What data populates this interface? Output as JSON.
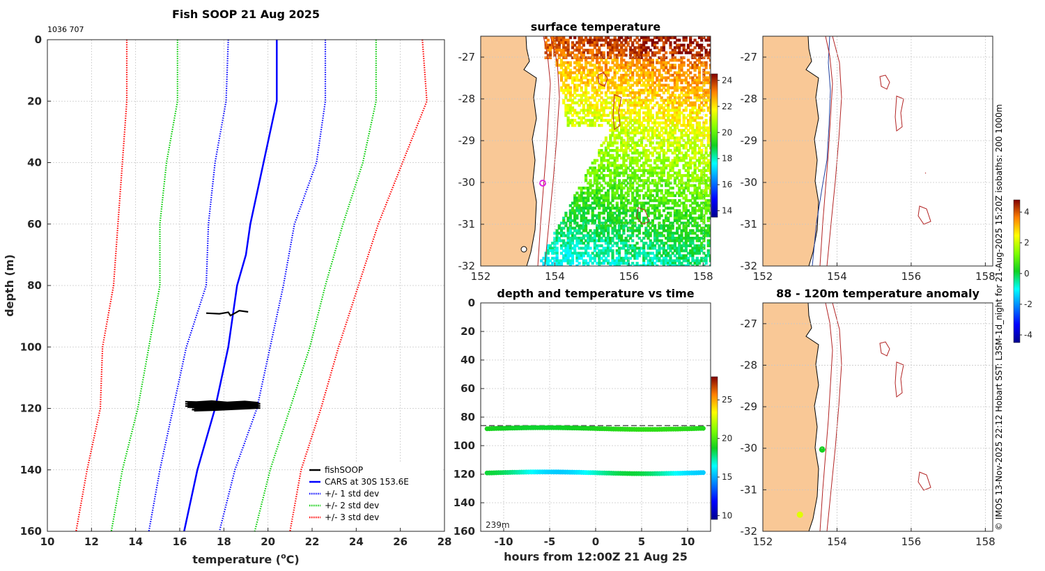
{
  "chart_data": [
    {
      "type": "line",
      "title": "Fish SOOP 21 Aug 2025",
      "id_text": "1036 707",
      "xlabel": "temperature (",
      "xlabel_unit": "o",
      "xlabel_end": "C)",
      "ylabel": "depth (m)",
      "xlim": [
        10,
        28
      ],
      "ylim": [
        0,
        160
      ],
      "xticks": [
        "10",
        "12",
        "14",
        "16",
        "18",
        "20",
        "22",
        "24",
        "26",
        "28"
      ],
      "yticks": [
        "0",
        "20",
        "40",
        "60",
        "80",
        "100",
        "120",
        "140",
        "160"
      ],
      "legend": [
        "fishSOOP",
        "CARS at 30S 153.6E",
        "+/- 1 std dev",
        "+/- 2 std dev",
        "+/- 3 std dev"
      ],
      "series": [
        {
          "name": "CARS at 30S 153.6E",
          "color": "#0000ff",
          "style": "solid",
          "points": [
            [
              20.4,
              0
            ],
            [
              20.4,
              20
            ],
            [
              19.8,
              40
            ],
            [
              19.2,
              60
            ],
            [
              19.0,
              70
            ],
            [
              18.6,
              80
            ],
            [
              18.2,
              100
            ],
            [
              17.6,
              120
            ],
            [
              16.8,
              140
            ],
            [
              16.2,
              160
            ]
          ]
        },
        {
          "name": "+/- 1 std dev low",
          "color": "#0000ff",
          "style": "dotted",
          "points": [
            [
              18.2,
              0
            ],
            [
              18.1,
              20
            ],
            [
              17.6,
              40
            ],
            [
              17.3,
              60
            ],
            [
              17.2,
              80
            ],
            [
              16.3,
              100
            ],
            [
              15.7,
              120
            ],
            [
              15.1,
              140
            ],
            [
              14.6,
              160
            ]
          ]
        },
        {
          "name": "+/- 1 std dev high",
          "color": "#0000ff",
          "style": "dotted",
          "points": [
            [
              22.6,
              0
            ],
            [
              22.6,
              20
            ],
            [
              22.2,
              40
            ],
            [
              21.2,
              60
            ],
            [
              20.7,
              80
            ],
            [
              20.1,
              100
            ],
            [
              19.5,
              120
            ],
            [
              18.5,
              140
            ],
            [
              17.8,
              160
            ]
          ]
        },
        {
          "name": "+/- 2 std dev low",
          "color": "#00cc00",
          "style": "dotted",
          "points": [
            [
              15.9,
              0
            ],
            [
              15.9,
              20
            ],
            [
              15.4,
              40
            ],
            [
              15.1,
              60
            ],
            [
              15.1,
              80
            ],
            [
              14.6,
              100
            ],
            [
              14.1,
              120
            ],
            [
              13.4,
              140
            ],
            [
              12.9,
              160
            ]
          ]
        },
        {
          "name": "+/- 2 std dev high",
          "color": "#00cc00",
          "style": "dotted",
          "points": [
            [
              24.9,
              0
            ],
            [
              24.9,
              20
            ],
            [
              24.3,
              40
            ],
            [
              23.4,
              60
            ],
            [
              22.6,
              80
            ],
            [
              21.9,
              100
            ],
            [
              21.0,
              120
            ],
            [
              20.1,
              140
            ],
            [
              19.4,
              160
            ]
          ]
        },
        {
          "name": "+/- 3 std dev low",
          "color": "#ff0000",
          "style": "dotted",
          "points": [
            [
              13.6,
              0
            ],
            [
              13.6,
              20
            ],
            [
              13.4,
              40
            ],
            [
              13.2,
              60
            ],
            [
              13.0,
              80
            ],
            [
              12.5,
              100
            ],
            [
              12.4,
              120
            ],
            [
              11.8,
              140
            ],
            [
              11.3,
              160
            ]
          ]
        },
        {
          "name": "+/- 3 std dev high",
          "color": "#ff0000",
          "style": "dotted",
          "points": [
            [
              27.0,
              0
            ],
            [
              27.2,
              20
            ],
            [
              26.1,
              40
            ],
            [
              25.0,
              60
            ],
            [
              24.1,
              80
            ],
            [
              23.2,
              100
            ],
            [
              22.4,
              120
            ],
            [
              21.5,
              140
            ],
            [
              21.0,
              160
            ]
          ]
        }
      ],
      "fishsoop": {
        "name": "fishSOOP",
        "color": "#000000",
        "points": [
          [
            17.2,
            89
          ],
          [
            17.8,
            89.2
          ],
          [
            18.2,
            88.7
          ],
          [
            18.3,
            89.8
          ],
          [
            18.5,
            89
          ],
          [
            18.7,
            88.2
          ],
          [
            19.1,
            88.6
          ],
          [
            16.3,
            119
          ],
          [
            16.8,
            118.5
          ],
          [
            17.5,
            118.8
          ],
          [
            18.2,
            118.6
          ],
          [
            19.0,
            118.9
          ],
          [
            19.6,
            118.7
          ],
          [
            17.5,
            120
          ],
          [
            16.6,
            119.6
          ]
        ]
      }
    },
    {
      "type": "heatmap",
      "title": "surface temperature",
      "xlim": [
        152,
        158.2
      ],
      "ylim": [
        -32,
        -26.5
      ],
      "xticks": [
        "152",
        "154",
        "156",
        "158"
      ],
      "yticks": [
        "-27",
        "-28",
        "-29",
        "-30",
        "-31",
        "-32"
      ],
      "colorbar": {
        "ticks": [
          "14",
          "16",
          "18",
          "20",
          "22",
          "24"
        ],
        "range": [
          13.5,
          24.5
        ]
      }
    },
    {
      "type": "scatter",
      "title": "depth and temperature vs time",
      "xlabel": "hours from 12:00Z 21 Aug 25",
      "xlim": [
        -12.5,
        12.5
      ],
      "ylim": [
        0,
        160
      ],
      "xticks": [
        "-10",
        "-5",
        "0",
        "5",
        "10"
      ],
      "yticks": [
        "0",
        "20",
        "40",
        "60",
        "80",
        "100",
        "120",
        "140",
        "160"
      ],
      "annotation": "239m",
      "dashed_line_depth": 86,
      "series": [
        {
          "name": "upper",
          "depth": 88,
          "temp": 19
        },
        {
          "name": "lower",
          "depth": 119,
          "temp": 17
        }
      ],
      "colorbar": {
        "ticks": [
          "10",
          "15",
          "20",
          "25"
        ],
        "range": [
          9.5,
          28
        ]
      }
    },
    {
      "type": "map",
      "title": "",
      "xlim": [
        152,
        158.2
      ],
      "ylim": [
        -32,
        -26.5
      ],
      "xticks": [
        "152",
        "154",
        "156",
        "158"
      ],
      "yticks": [
        "-27",
        "-28",
        "-29",
        "-30",
        "-31",
        "-32"
      ]
    },
    {
      "type": "scatter",
      "title": "88 - 120m temperature anomaly",
      "xlim": [
        152,
        158.2
      ],
      "ylim": [
        -32,
        -26.5
      ],
      "xticks": [
        "152",
        "154",
        "156",
        "158"
      ],
      "yticks": [
        "-27",
        "-28",
        "-29",
        "-30",
        "-31",
        "-32"
      ],
      "points": [
        {
          "lon": 153.6,
          "lat": -30.03,
          "anomaly": 0.2
        },
        {
          "lon": 153.0,
          "lat": -31.6,
          "anomaly": 2.2
        }
      ],
      "colorbar": {
        "ticks": [
          "4",
          "2",
          "0",
          "-2",
          "-4"
        ],
        "range": [
          -4.5,
          4.8
        ]
      }
    }
  ],
  "credit": "© IMOS 13-Nov-2025 22:12 Hobart SST: L3SM-1d_night for 21-Aug-2025 15:20Z isobaths: 200  1000m"
}
